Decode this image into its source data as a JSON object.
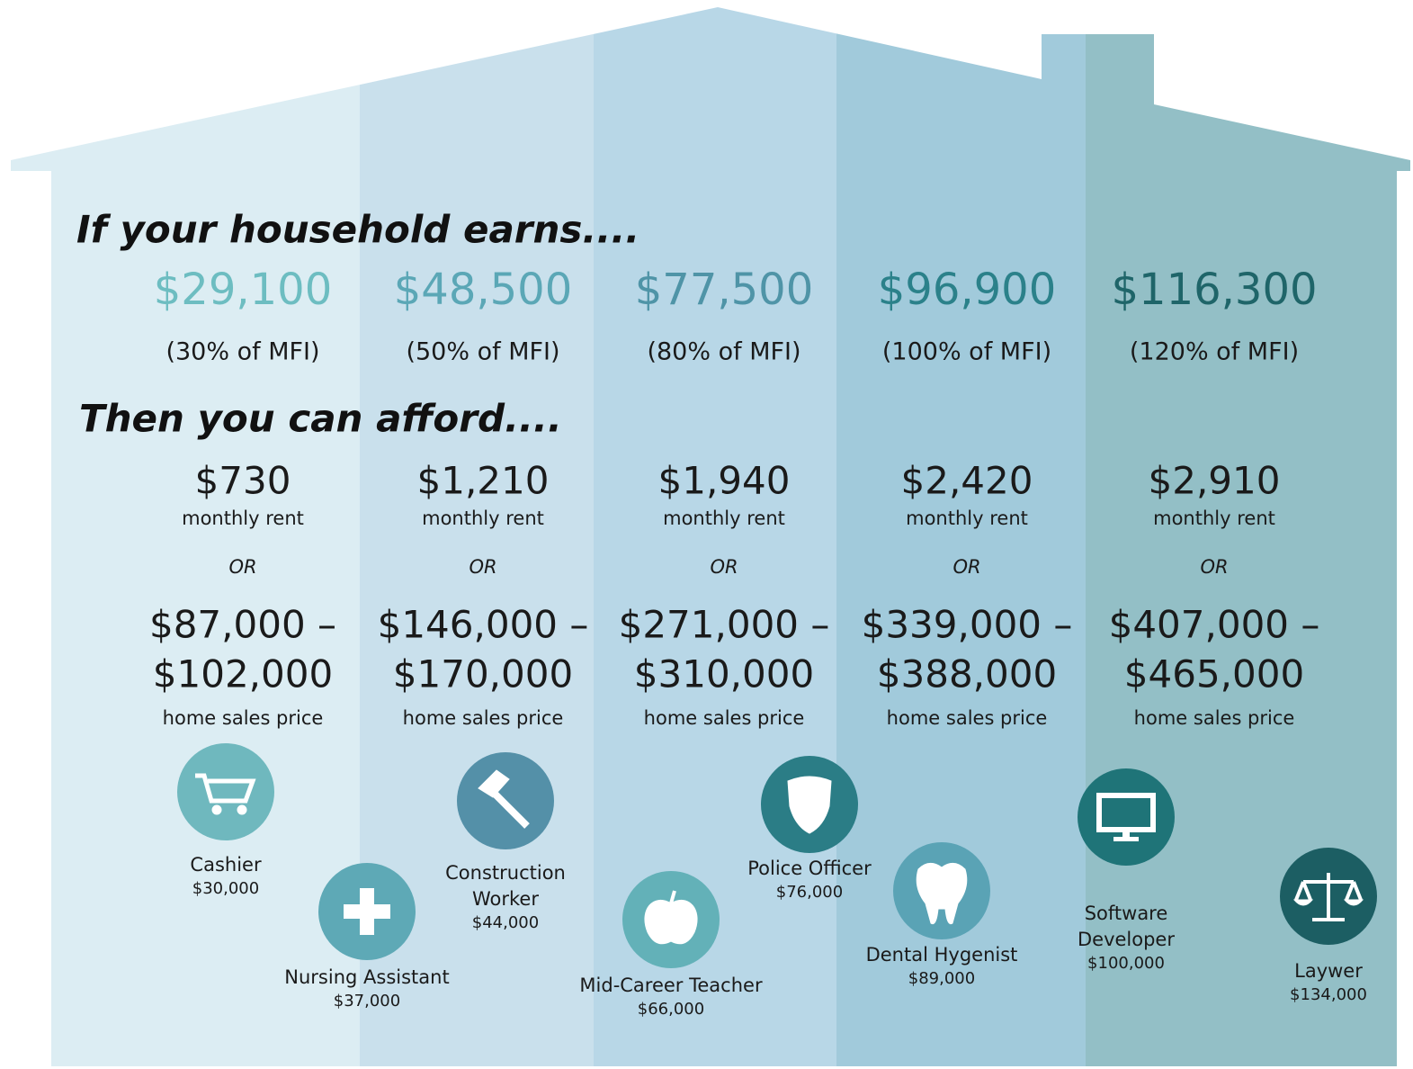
{
  "heading_income": "If your household earns....",
  "heading_afford": "Then you can afford....",
  "columns": [
    {
      "income": "$29,100",
      "mfi": "(30% of MFI)",
      "rent": "$730",
      "rent_label": "monthly rent",
      "or": "OR",
      "price_low": "$87,000 –",
      "price_high": "$102,000",
      "price_label": "home sales price"
    },
    {
      "income": "$48,500",
      "mfi": "(50% of MFI)",
      "rent": "$1,210",
      "rent_label": "monthly rent",
      "or": "OR",
      "price_low": "$146,000 –",
      "price_high": "$170,000",
      "price_label": "home sales price"
    },
    {
      "income": "$77,500",
      "mfi": "(80% of MFI)",
      "rent": "$1,940",
      "rent_label": "monthly rent",
      "or": "OR",
      "price_low": "$271,000 –",
      "price_high": "$310,000",
      "price_label": "home sales price"
    },
    {
      "income": "$96,900",
      "mfi": "(100% of MFI)",
      "rent": "$2,420",
      "rent_label": "monthly rent",
      "or": "OR",
      "price_low": "$339,000 –",
      "price_high": "$388,000",
      "price_label": "home sales price"
    },
    {
      "income": "$116,300",
      "mfi": "(120% of MFI)",
      "rent": "$2,910",
      "rent_label": "monthly rent",
      "or": "OR",
      "price_low": "$407,000 –",
      "price_high": "$465,000",
      "price_label": "home sales price"
    }
  ],
  "occupations": [
    {
      "name": "Cashier",
      "salary": "$30,000"
    },
    {
      "name": "Nursing Assistant",
      "salary": "$37,000"
    },
    {
      "name": "Construction Worker",
      "salary": "$44,000"
    },
    {
      "name": "Mid-Career Teacher",
      "salary": "$66,000"
    },
    {
      "name": "Police Officer",
      "salary": "$76,000"
    },
    {
      "name": "Dental Hygenist",
      "salary": "$89,000"
    },
    {
      "name": "Software Developer",
      "salary": "$100,000"
    },
    {
      "name": "Laywer",
      "salary": "$134,000"
    }
  ]
}
